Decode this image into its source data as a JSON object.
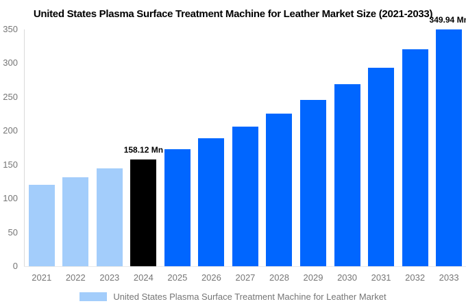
{
  "title": "United States Plasma Surface Treatment Machine for Leather Market Size (2021-2033)",
  "legend": {
    "label": "United States Plasma Surface Treatment Machine for Leather Market",
    "swatch_color": "#a3cdfb"
  },
  "colors": {
    "historical_bar": "#a3cdfb",
    "current_bar": "#000000",
    "forecast_bar": "#0066ff",
    "axis_line": "#d9d9d9",
    "baseline": "#e9e9e9",
    "tick_text": "#757575",
    "title_text": "#000000",
    "annotation_text": "#000000"
  },
  "chart_data": {
    "type": "bar",
    "title": "United States Plasma Surface Treatment Machine for Leather Market Size (2021-2033)",
    "xlabel": "",
    "ylabel": "",
    "unit": "Mn",
    "categories": [
      "2021",
      "2022",
      "2023",
      "2024",
      "2025",
      "2026",
      "2027",
      "2028",
      "2029",
      "2030",
      "2031",
      "2032",
      "2033"
    ],
    "values": [
      120.4,
      131.3,
      145.0,
      158.12,
      172.7,
      188.7,
      206.1,
      225.1,
      245.9,
      268.6,
      293.4,
      320.4,
      349.94
    ],
    "bar_colors": [
      "#a3cdfb",
      "#a3cdfb",
      "#a3cdfb",
      "#000000",
      "#0066ff",
      "#0066ff",
      "#0066ff",
      "#0066ff",
      "#0066ff",
      "#0066ff",
      "#0066ff",
      "#0066ff",
      "#0066ff"
    ],
    "annotations": [
      {
        "category": "2024",
        "index": 3,
        "text": "158.12 Mn"
      },
      {
        "category": "2033",
        "index": 12,
        "text": "349.94 Mn"
      }
    ],
    "ylim": [
      0,
      350
    ],
    "y_ticks": [
      0,
      50,
      100,
      150,
      200,
      250,
      300,
      350
    ],
    "grid": false,
    "legend_position": "bottom",
    "legend_entries": [
      "United States Plasma Surface Treatment Machine for Leather Market"
    ]
  }
}
